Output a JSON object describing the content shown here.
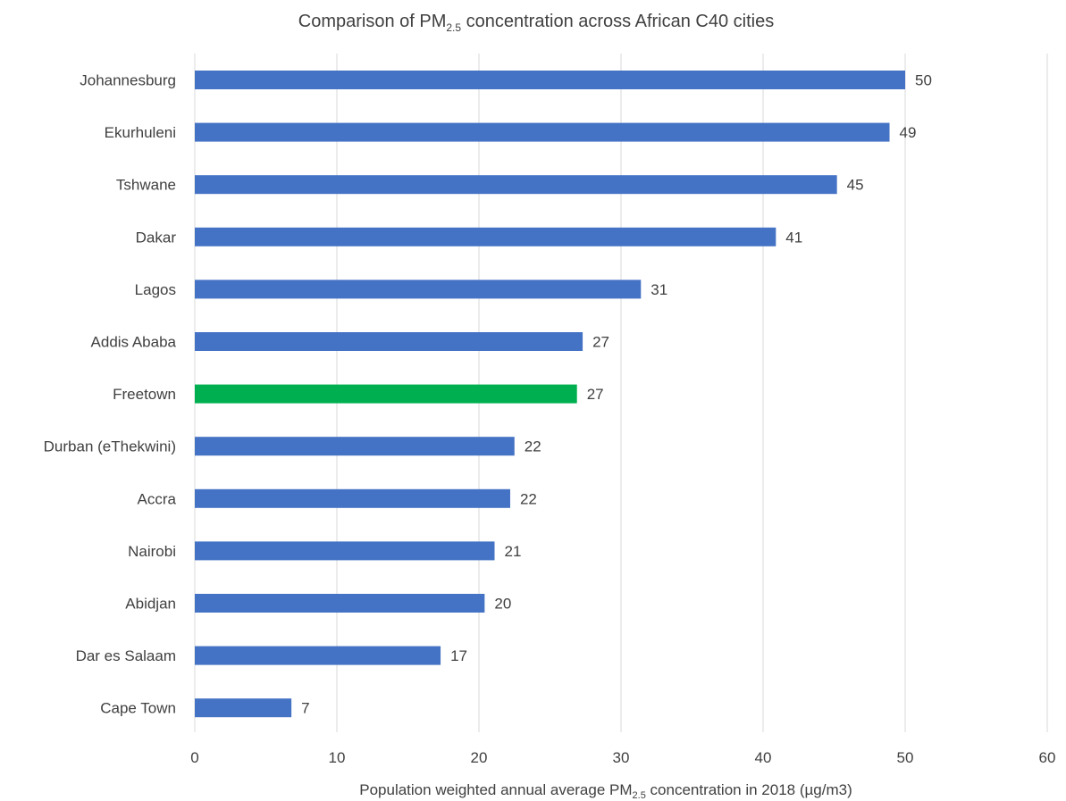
{
  "chart_data": {
    "type": "bar",
    "orientation": "horizontal",
    "title": {
      "prefix": "Comparison of PM",
      "subscript": "2.5",
      "suffix": " concentration across African C40 cities"
    },
    "xlabel": {
      "prefix": "Population weighted annual average PM",
      "subscript": "2.5",
      "suffix": " concentration in 2018 (µg/m3)"
    },
    "ylabel": "",
    "xlim": [
      0,
      60
    ],
    "xticks": [
      0,
      10,
      20,
      30,
      40,
      50,
      60
    ],
    "grid": "vertical",
    "categories": [
      "Johannesburg",
      "Ekurhuleni",
      "Tshwane",
      "Dakar",
      "Lagos",
      "Addis Ababa",
      "Freetown",
      "Durban (eThekwini)",
      "Accra",
      "Nairobi",
      "Abidjan",
      "Dar es Salaam",
      "Cape Town"
    ],
    "values": [
      50,
      49,
      45,
      41,
      31,
      27,
      27,
      22,
      22,
      21,
      20,
      17,
      7
    ],
    "plotted_values": [
      50,
      48.9,
      45.2,
      40.9,
      31.4,
      27.3,
      26.9,
      22.5,
      22.2,
      21.1,
      20.4,
      17.3,
      6.8
    ],
    "data_labels": [
      "50",
      "49",
      "45",
      "41",
      "31",
      "27",
      "27",
      "22",
      "22",
      "21",
      "20",
      "17",
      "7"
    ],
    "colors": {
      "default": "#4472c4",
      "highlight": "#00b050",
      "highlight_category": "Freetown",
      "text": "#404040",
      "grid": "#d9d9d9"
    }
  }
}
